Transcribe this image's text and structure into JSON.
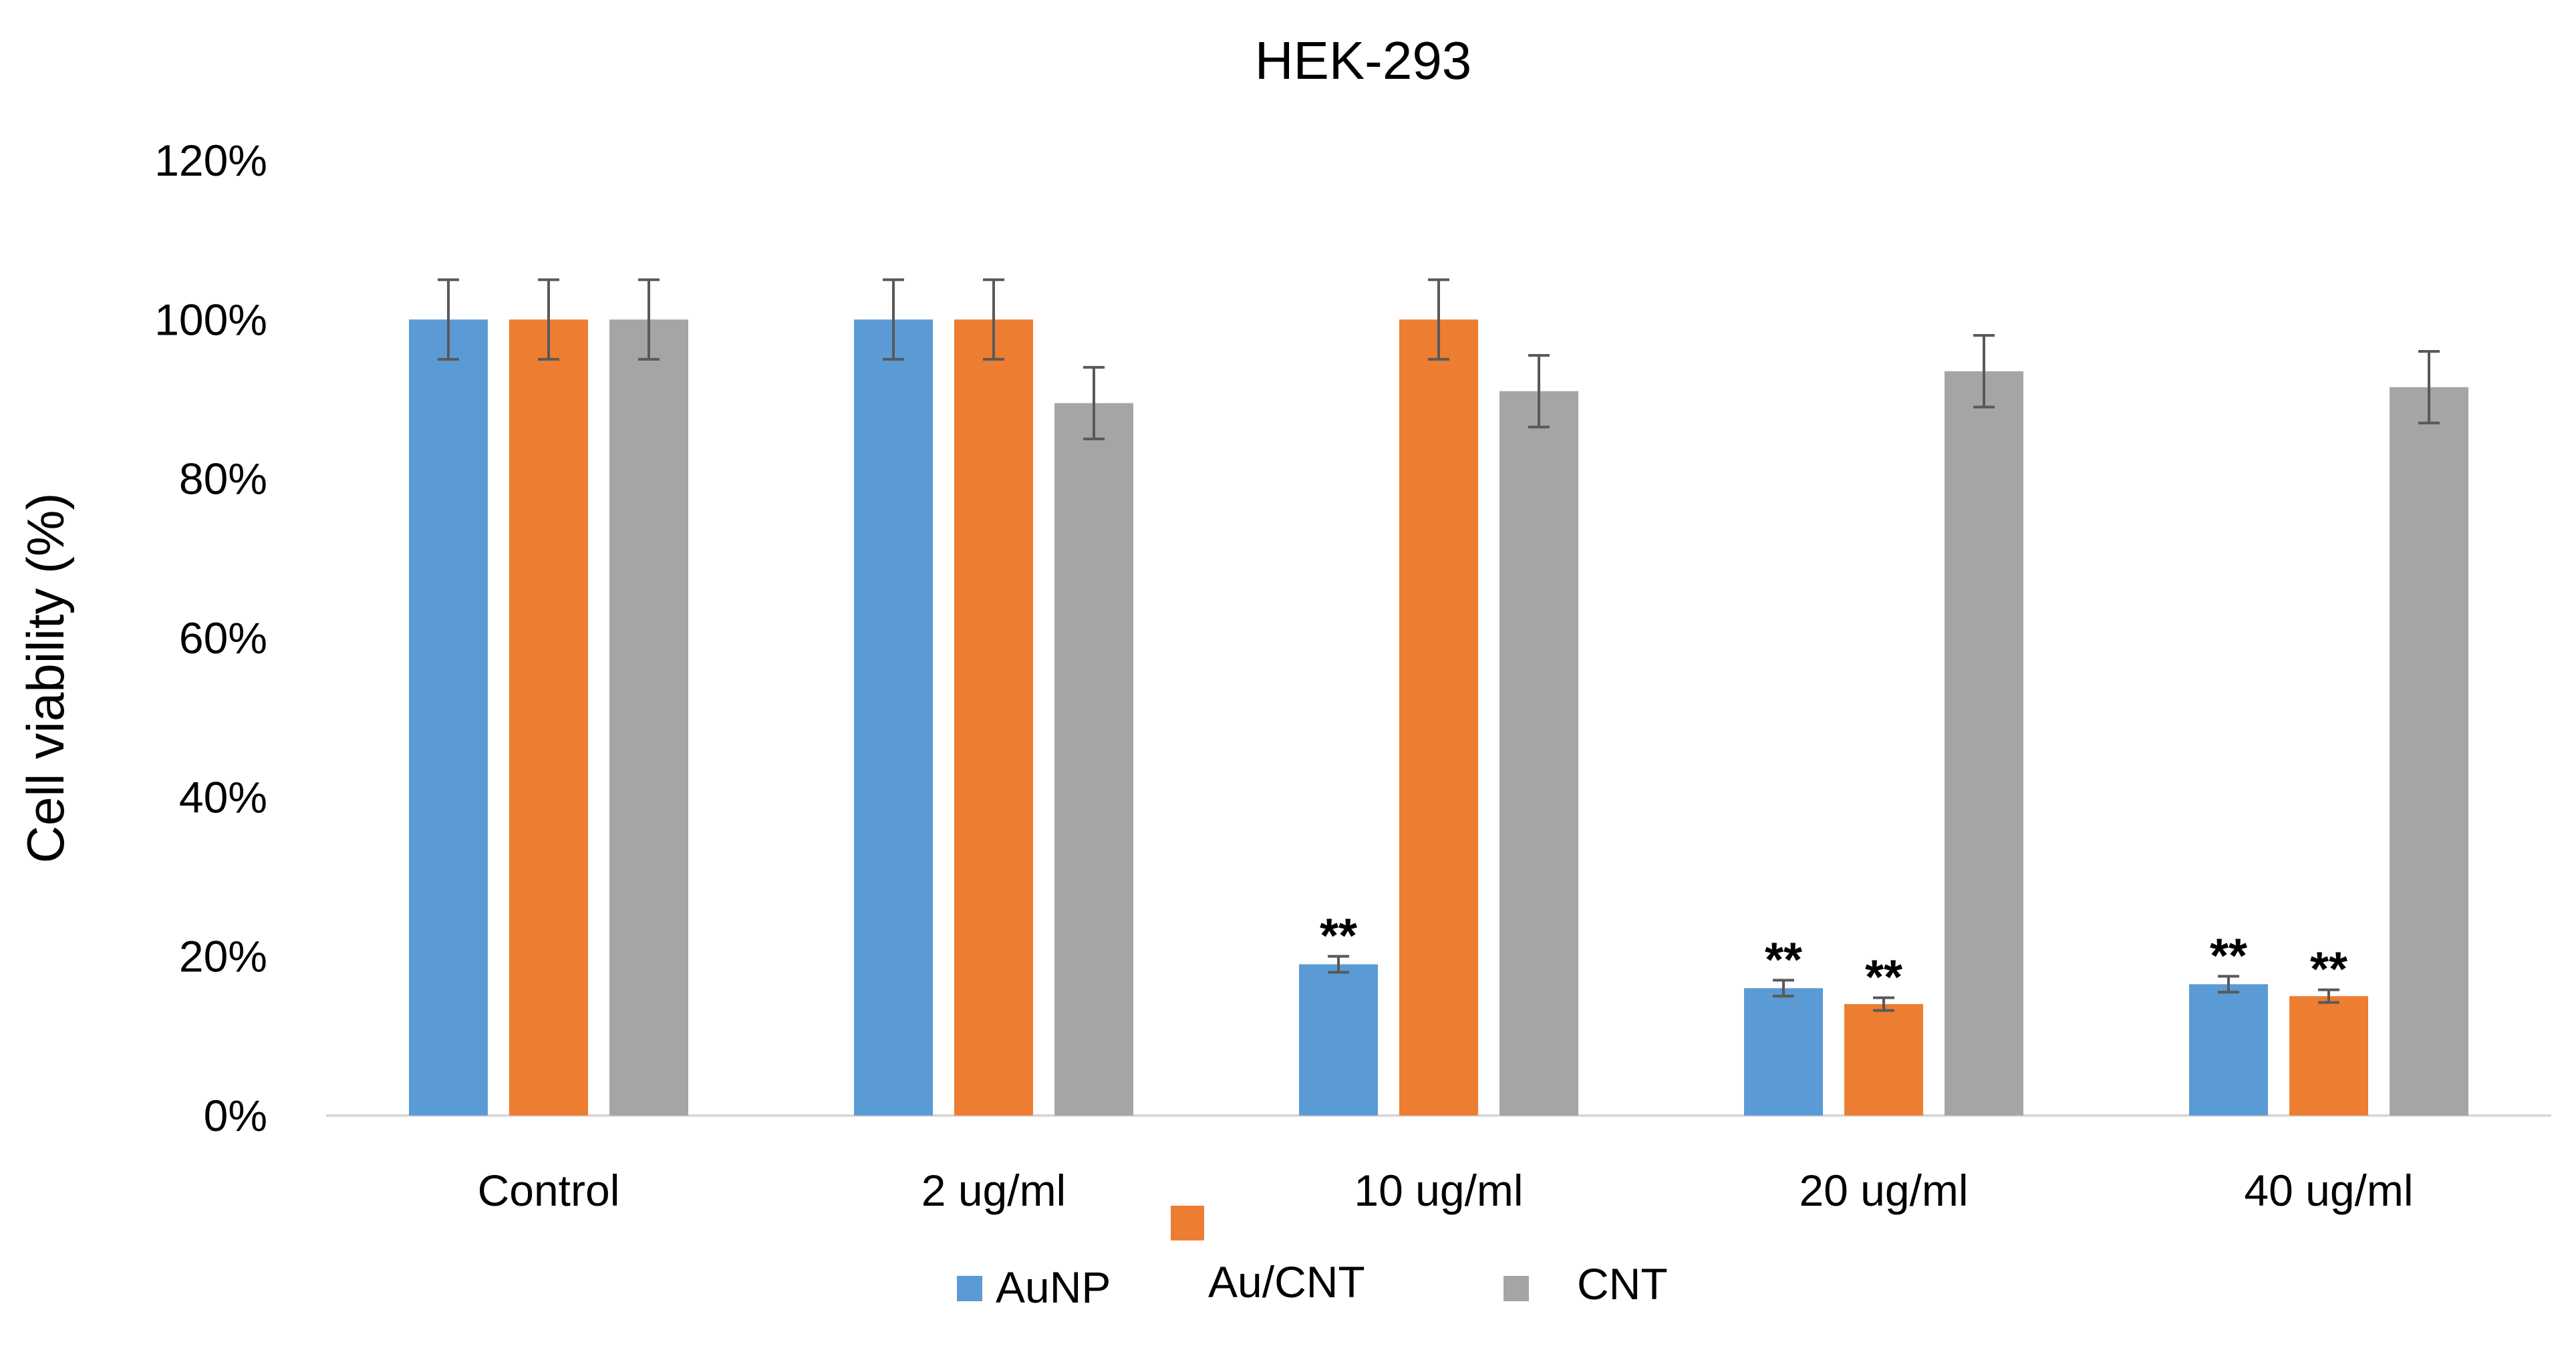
{
  "chart_data": {
    "type": "bar",
    "title": "HEK-293",
    "xlabel": "",
    "ylabel": "Cell viability (%)",
    "ylim": [
      0,
      120
    ],
    "yticks": [
      "0%",
      "20%",
      "40%",
      "60%",
      "80%",
      "100%",
      "120%"
    ],
    "grid": false,
    "legend_position": "bottom",
    "categories": [
      "Control",
      "2 ug/ml",
      "10 ug/ml",
      "20 ug/ml",
      "40 ug/ml"
    ],
    "series": [
      {
        "name": "AuNP",
        "color": "#5b9bd5",
        "values": [
          100,
          100,
          19,
          16,
          16.5
        ],
        "errors": [
          5,
          5,
          1,
          1,
          1
        ],
        "annotations": [
          "",
          "",
          "**",
          "**",
          "**"
        ]
      },
      {
        "name": "Au/CNT",
        "color": "#ed7d31",
        "values": [
          100,
          100,
          100,
          14,
          15
        ],
        "errors": [
          5,
          5,
          5,
          0.8,
          0.8
        ],
        "annotations": [
          "",
          "",
          "",
          "**",
          "**"
        ]
      },
      {
        "name": "CNT",
        "color": "#a5a5a5",
        "values": [
          100,
          89.5,
          91,
          93.5,
          91.5
        ],
        "errors": [
          5,
          4.5,
          4.5,
          4.5,
          4.5
        ],
        "annotations": [
          "",
          "",
          "",
          "",
          ""
        ]
      }
    ]
  }
}
